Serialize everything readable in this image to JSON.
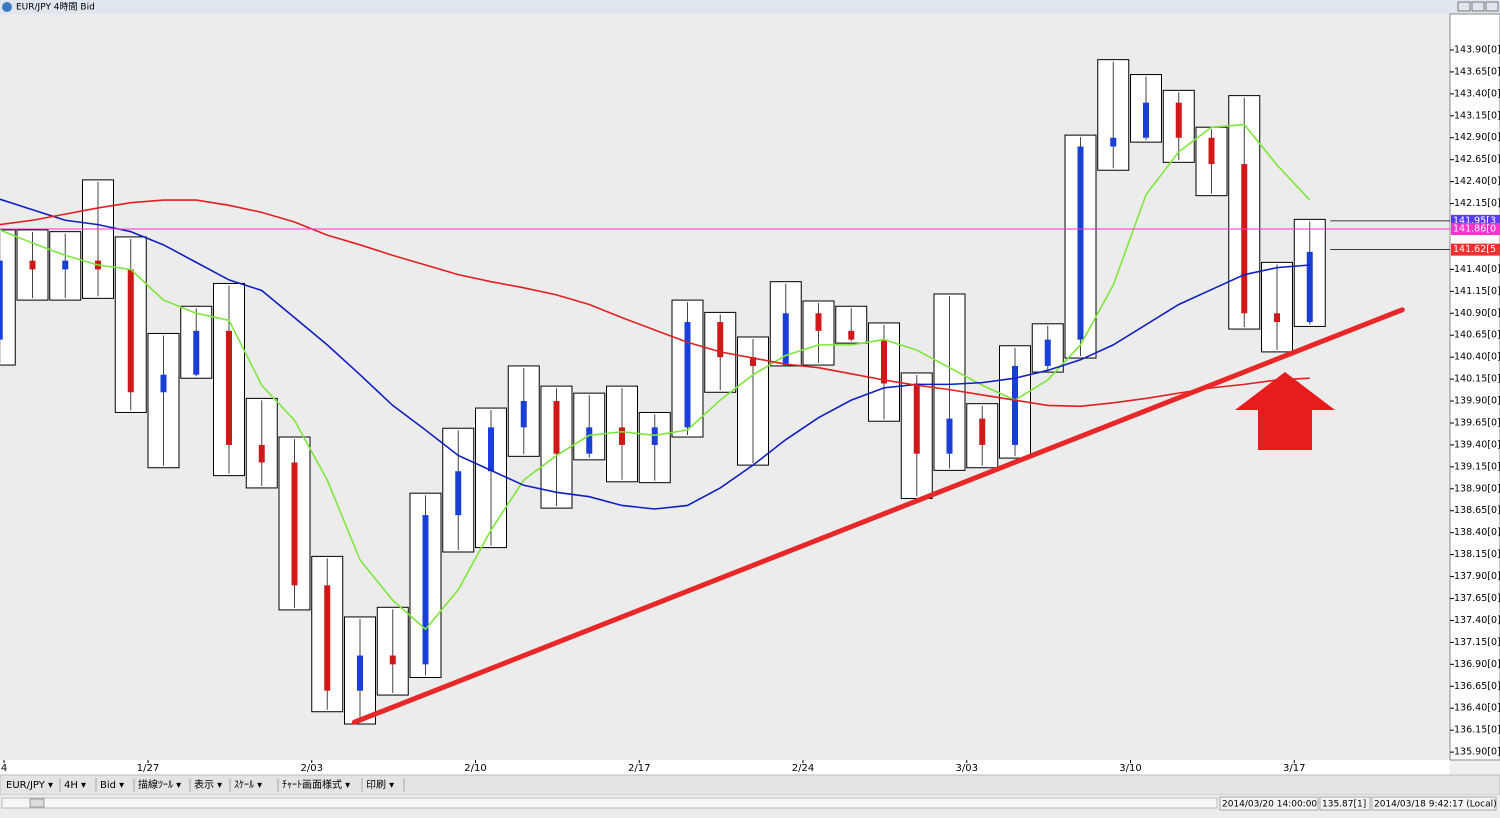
{
  "window": {
    "title": "EUR/JPY 4時間 Bid"
  },
  "toolbar": [
    "EUR/JPY ▾",
    "4H ▾",
    "Bid ▾",
    "描線ﾂｰﾙ ▾",
    "表示 ▾",
    "ｽｹｰﾙ ▾",
    "ﾁｬｰﾄ画面様式 ▾",
    "印刷 ▾"
  ],
  "status": [
    "2014/03/20 14:00:00",
    "135.87[1]",
    "2014/03/18 9:42:17 (Local)"
  ],
  "chart_data": {
    "type": "candlestick",
    "categories": [
      "4",
      null,
      null,
      null,
      null,
      "1/27",
      null,
      null,
      null,
      null,
      "2/03",
      null,
      null,
      null,
      null,
      "2/10",
      null,
      null,
      null,
      null,
      "2/17",
      null,
      null,
      null,
      null,
      "2/24",
      null,
      null,
      null,
      null,
      "3/03",
      null,
      null,
      null,
      null,
      "3/10",
      null,
      null,
      null,
      null,
      "3/17"
    ],
    "open": [
      140.6,
      141.5,
      141.4,
      141.5,
      141.4,
      140.0,
      140.2,
      140.7,
      139.4,
      139.2,
      137.8,
      136.6,
      137.0,
      136.9,
      138.6,
      139.1,
      139.6,
      139.9,
      139.3,
      139.6,
      139.4,
      139.6,
      140.8,
      140.4,
      140.3,
      140.9,
      140.7,
      140.6,
      140.1,
      139.3,
      139.7,
      139.4,
      140.3,
      140.6,
      142.8,
      142.9,
      143.3,
      142.9,
      142.6,
      140.9,
      140.8
    ],
    "high": [
      141.85,
      141.85,
      141.83,
      142.42,
      141.77,
      140.67,
      140.98,
      141.24,
      139.93,
      139.49,
      138.13,
      137.44,
      137.55,
      138.85,
      139.59,
      139.82,
      140.3,
      140.07,
      139.99,
      140.07,
      139.77,
      141.05,
      140.91,
      140.63,
      141.26,
      141.04,
      140.98,
      140.79,
      140.22,
      141.12,
      139.87,
      140.53,
      140.78,
      142.93,
      143.79,
      143.62,
      143.44,
      143.02,
      143.38,
      141.48,
      141.97
    ],
    "low": [
      140.31,
      141.05,
      141.05,
      141.07,
      139.77,
      139.14,
      140.16,
      139.05,
      138.91,
      137.52,
      136.36,
      136.22,
      136.55,
      136.75,
      138.18,
      138.23,
      139.27,
      138.68,
      139.23,
      138.98,
      138.97,
      139.49,
      140.0,
      139.17,
      140.3,
      140.31,
      140.56,
      139.67,
      138.79,
      139.11,
      139.14,
      139.25,
      140.23,
      140.39,
      142.53,
      142.85,
      142.62,
      142.24,
      140.72,
      140.46,
      140.75
    ],
    "close": [
      141.5,
      141.4,
      141.5,
      141.4,
      140.0,
      140.2,
      140.7,
      139.4,
      139.2,
      137.8,
      136.6,
      137.0,
      136.9,
      138.6,
      139.1,
      139.6,
      139.9,
      139.3,
      139.6,
      139.4,
      139.6,
      140.8,
      140.4,
      140.3,
      140.9,
      140.7,
      140.6,
      140.1,
      139.3,
      139.7,
      139.4,
      140.3,
      140.6,
      142.8,
      142.9,
      143.3,
      142.9,
      142.6,
      140.9,
      140.8,
      141.6
    ],
    "up_color": "#1a3fd6",
    "down_color": "#d01818",
    "lines": [
      {
        "color": "#7ee63a",
        "values": [
          141.85,
          141.7,
          141.56,
          141.45,
          141.4,
          141.05,
          140.9,
          140.82,
          140.08,
          139.68,
          139.0,
          138.09,
          137.63,
          137.3,
          137.75,
          138.43,
          139.0,
          139.28,
          139.51,
          139.55,
          139.51,
          139.57,
          139.91,
          140.2,
          140.42,
          140.54,
          140.54,
          140.6,
          140.48,
          140.28,
          140.08,
          139.91,
          140.14,
          140.54,
          141.22,
          142.25,
          142.74,
          143.02,
          143.05,
          142.59,
          142.19
        ]
      },
      {
        "color": "#1020c0",
        "values": [
          142.2,
          142.08,
          141.96,
          141.91,
          141.83,
          141.68,
          141.48,
          141.28,
          141.16,
          140.85,
          140.54,
          140.2,
          139.85,
          139.57,
          139.28,
          139.11,
          138.94,
          138.86,
          138.81,
          138.71,
          138.67,
          138.71,
          138.91,
          139.17,
          139.46,
          139.71,
          139.91,
          140.05,
          140.09,
          140.09,
          140.11,
          140.16,
          140.25,
          140.37,
          140.54,
          140.77,
          141.0,
          141.17,
          141.34,
          141.42,
          141.45
        ]
      },
      {
        "color": "#e02020",
        "values": [
          141.91,
          141.96,
          142.03,
          142.1,
          142.16,
          142.19,
          142.19,
          142.13,
          142.05,
          141.94,
          141.79,
          141.68,
          141.56,
          141.45,
          141.34,
          141.26,
          141.19,
          141.11,
          141.0,
          140.85,
          140.71,
          140.57,
          140.46,
          140.39,
          140.32,
          140.28,
          140.21,
          140.14,
          140.08,
          140.03,
          139.97,
          139.91,
          139.85,
          139.84,
          139.88,
          139.93,
          139.99,
          140.05,
          140.09,
          140.14,
          140.16
        ]
      }
    ],
    "trendline": {
      "color": "#e82828",
      "x": [
        11.3,
        43.3
      ],
      "y": [
        136.24,
        140.94
      ]
    },
    "current_price": {
      "value": 141.86,
      "label": "141.86[0",
      "color": "#ff33cc"
    },
    "price_flags": [
      {
        "value": 141.953,
        "label": "141.95[3",
        "color": "#5a3cff"
      },
      {
        "value": 141.625,
        "label": "141.62[5",
        "color": "#f03030"
      }
    ],
    "ylim": [
      135.81,
      144.31
    ],
    "yticks": [
      {
        "value": 143.9,
        "label": "143.90[0]"
      },
      {
        "value": 143.65,
        "label": "143.65[0]"
      },
      {
        "value": 143.4,
        "label": "143.40[0]"
      },
      {
        "value": 143.15,
        "label": "143.15[0]"
      },
      {
        "value": 142.9,
        "label": "142.90[0]"
      },
      {
        "value": 142.65,
        "label": "142.65[0]"
      },
      {
        "value": 142.4,
        "label": "142.40[0]"
      },
      {
        "value": 142.15,
        "label": "142.15[0]"
      },
      {
        "value": 141.4,
        "label": "141.40[0]"
      },
      {
        "value": 141.15,
        "label": "141.15[0]"
      },
      {
        "value": 140.9,
        "label": "140.90[0]"
      },
      {
        "value": 140.65,
        "label": "140.65[0]"
      },
      {
        "value": 140.4,
        "label": "140.40[0]"
      },
      {
        "value": 140.15,
        "label": "140.15[0]"
      },
      {
        "value": 139.9,
        "label": "139.90[0]"
      },
      {
        "value": 139.65,
        "label": "139.65[0]"
      },
      {
        "value": 139.4,
        "label": "139.40[0]"
      },
      {
        "value": 139.15,
        "label": "139.15[0]"
      },
      {
        "value": 138.9,
        "label": "138.90[0]"
      },
      {
        "value": 138.65,
        "label": "138.65[0]"
      },
      {
        "value": 138.4,
        "label": "138.40[0]"
      },
      {
        "value": 138.15,
        "label": "138.15[0]"
      },
      {
        "value": 137.9,
        "label": "137.90[0]"
      },
      {
        "value": 137.65,
        "label": "137.65[0]"
      },
      {
        "value": 137.4,
        "label": "137.40[0]"
      },
      {
        "value": 137.15,
        "label": "137.15[0]"
      },
      {
        "value": 136.9,
        "label": "136.90[0]"
      },
      {
        "value": 136.65,
        "label": "136.65[0]"
      },
      {
        "value": 136.4,
        "label": "136.40[0]"
      },
      {
        "value": 136.15,
        "label": "136.15[0]"
      },
      {
        "value": 135.9,
        "label": "135.90[0]"
      }
    ]
  }
}
